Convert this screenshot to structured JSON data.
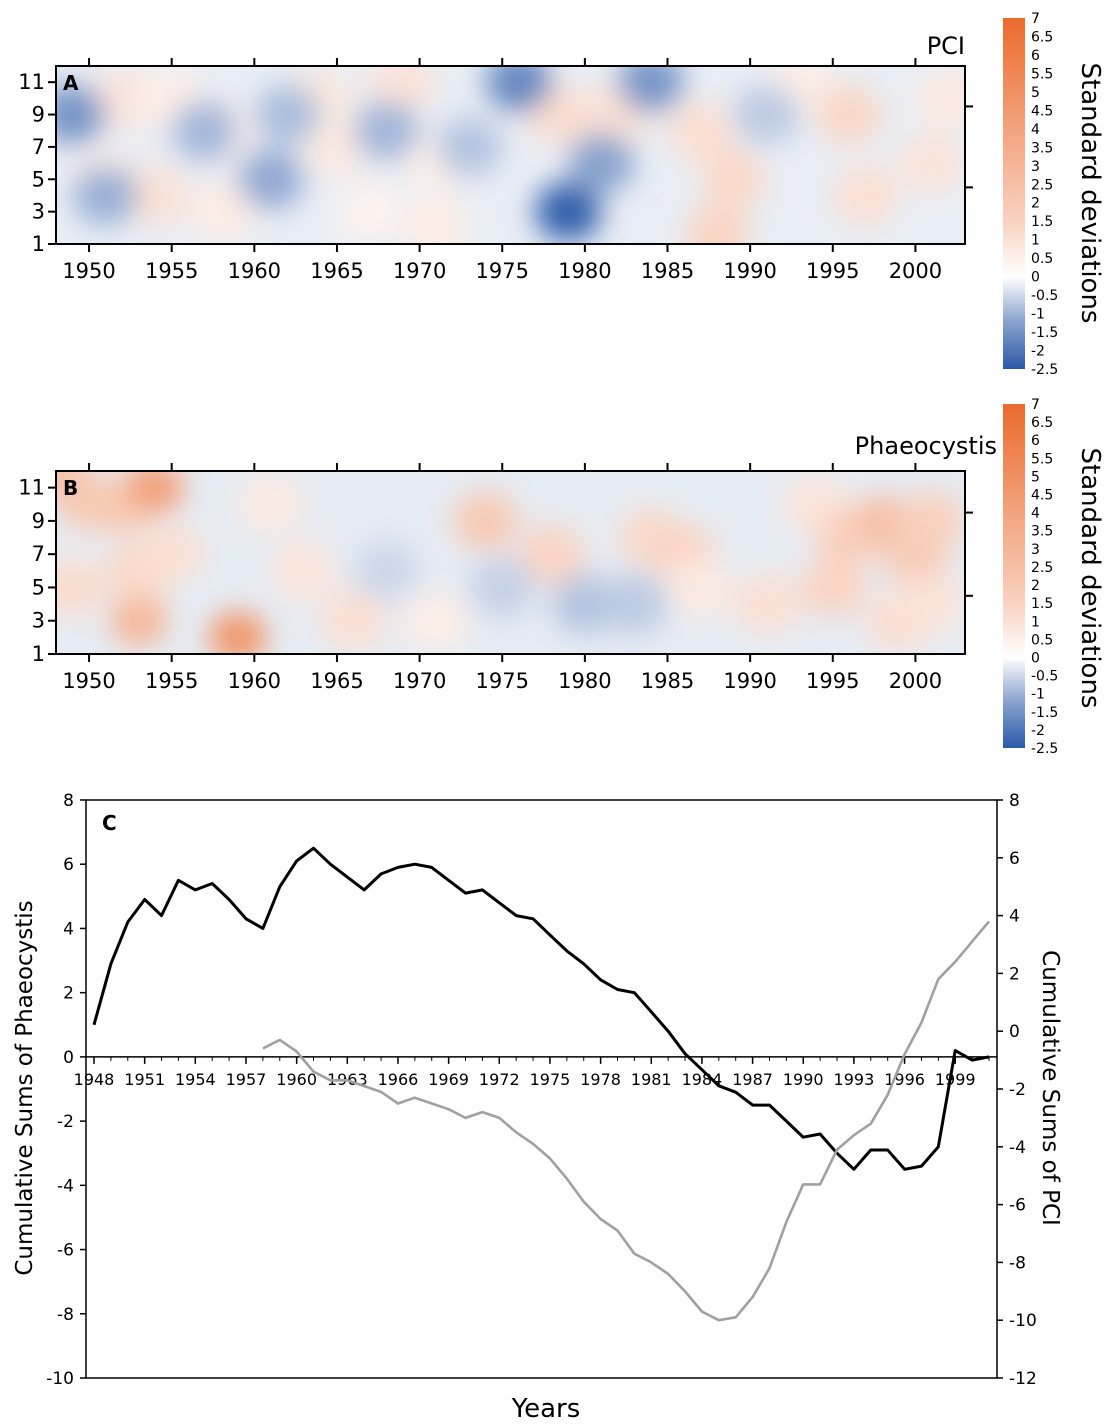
{
  "colors": {
    "negative": "#2b5aa8",
    "neutral": "#ffffff",
    "positive": "#ec6a2c",
    "phaeo_line": "#000000",
    "pci_line": "#a0a0a0"
  },
  "chart_data": [
    {
      "type": "heatmap",
      "panel_label": "A",
      "title": "PCI",
      "x_ticks": [
        "1950",
        "1955",
        "1960",
        "1965",
        "1970",
        "1975",
        "1980",
        "1985",
        "1990",
        "1995",
        "2000"
      ],
      "y_ticks": [
        "1",
        "3",
        "5",
        "7",
        "9",
        "11"
      ],
      "xlim": [
        1948,
        2003
      ],
      "ylim": [
        1,
        12
      ],
      "colorbar": {
        "label": "Standard deviations",
        "range": [
          -2.5,
          7
        ],
        "ticks": [
          "7",
          "6.5",
          "6",
          "5.5",
          "5",
          "4.5",
          "4",
          "3.5",
          "3",
          "2.5",
          "2",
          "1.5",
          "1",
          "0.5",
          "0",
          "-0.5",
          "-1",
          "-1.5",
          "-2",
          "-2.5"
        ]
      },
      "blobs": [
        {
          "year": 1952,
          "month": 10,
          "value": 1.2
        },
        {
          "year": 1955,
          "month": 10,
          "value": 0.8
        },
        {
          "year": 1951,
          "month": 5,
          "value": 0.9
        },
        {
          "year": 1954,
          "month": 4,
          "value": 1.4
        },
        {
          "year": 1958,
          "month": 8,
          "value": 0.7
        },
        {
          "year": 1958,
          "month": 3,
          "value": 0.9
        },
        {
          "year": 1964,
          "month": 10,
          "value": 1.1
        },
        {
          "year": 1965,
          "month": 7,
          "value": 1.0
        },
        {
          "year": 1967,
          "month": 3,
          "value": 0.6
        },
        {
          "year": 1969,
          "month": 11,
          "value": 1.3
        },
        {
          "year": 1971,
          "month": 6,
          "value": 0.7
        },
        {
          "year": 1971,
          "month": 2,
          "value": 0.9
        },
        {
          "year": 1978.5,
          "month": 9,
          "value": 1.6
        },
        {
          "year": 1982,
          "month": 9,
          "value": 1.4
        },
        {
          "year": 1987,
          "month": 8,
          "value": 1.5
        },
        {
          "year": 1989,
          "month": 5,
          "value": 1.8
        },
        {
          "year": 1988,
          "month": 1.5,
          "value": 2.0
        },
        {
          "year": 1993,
          "month": 11,
          "value": 0.8
        },
        {
          "year": 1996,
          "month": 9,
          "value": 1.9
        },
        {
          "year": 1997,
          "month": 4,
          "value": 1.5
        },
        {
          "year": 2001,
          "month": 6,
          "value": 1.3
        },
        {
          "year": 2002,
          "month": 10,
          "value": 1.0
        },
        {
          "year": 1949,
          "month": 9,
          "value": -1.6
        },
        {
          "year": 1951,
          "month": 4,
          "value": -1.2
        },
        {
          "year": 1957,
          "month": 8,
          "value": -1.1
        },
        {
          "year": 1961,
          "month": 5,
          "value": -1.3
        },
        {
          "year": 1962,
          "month": 9,
          "value": -1.0
        },
        {
          "year": 1968,
          "month": 8,
          "value": -1.1
        },
        {
          "year": 1973,
          "month": 7,
          "value": -0.9
        },
        {
          "year": 1976,
          "month": 11,
          "value": -1.8
        },
        {
          "year": 1979,
          "month": 3,
          "value": -2.4
        },
        {
          "year": 1981,
          "month": 6,
          "value": -1.4
        },
        {
          "year": 1984,
          "month": 11,
          "value": -1.6
        },
        {
          "year": 1991,
          "month": 9,
          "value": -0.8
        }
      ]
    },
    {
      "type": "heatmap",
      "panel_label": "B",
      "title": "Phaeocystis",
      "x_ticks": [
        "1950",
        "1955",
        "1960",
        "1965",
        "1970",
        "1975",
        "1980",
        "1985",
        "1990",
        "1995",
        "2000"
      ],
      "y_ticks": [
        "1",
        "3",
        "5",
        "7",
        "9",
        "11"
      ],
      "xlim": [
        1948,
        2003
      ],
      "ylim": [
        1,
        12
      ],
      "colorbar": {
        "label": "Standard deviations",
        "range": [
          -2.5,
          7
        ],
        "ticks": [
          "7",
          "6.5",
          "6",
          "5.5",
          "5",
          "4.5",
          "4",
          "3.5",
          "3",
          "2.5",
          "2",
          "1.5",
          "1",
          "0.5",
          "0",
          "-0.5",
          "-1",
          "-1.5",
          "-2",
          "-2.5"
        ]
      },
      "blobs": [
        {
          "year": 1948.5,
          "month": 11.5,
          "value": 3.0
        },
        {
          "year": 1950,
          "month": 10,
          "value": 2.6
        },
        {
          "year": 1952,
          "month": 10,
          "value": 2.5
        },
        {
          "year": 1954,
          "month": 11,
          "value": 4.5
        },
        {
          "year": 1953,
          "month": 3,
          "value": 3.5
        },
        {
          "year": 1959,
          "month": 2,
          "value": 5.0
        },
        {
          "year": 1949,
          "month": 5,
          "value": 1.6
        },
        {
          "year": 1953,
          "month": 6,
          "value": 1.8
        },
        {
          "year": 1955,
          "month": 7,
          "value": 1.5
        },
        {
          "year": 1961,
          "month": 10,
          "value": 1.0
        },
        {
          "year": 1963,
          "month": 6,
          "value": 1.2
        },
        {
          "year": 1966,
          "month": 3,
          "value": 1.5
        },
        {
          "year": 1974,
          "month": 9,
          "value": 2.5
        },
        {
          "year": 1978,
          "month": 7,
          "value": 2.0
        },
        {
          "year": 1984,
          "month": 8,
          "value": 1.8
        },
        {
          "year": 1986,
          "month": 7,
          "value": 2.0
        },
        {
          "year": 1987,
          "month": 5,
          "value": 1.0
        },
        {
          "year": 1991,
          "month": 4,
          "value": 1.5
        },
        {
          "year": 1994,
          "month": 10,
          "value": 1.2
        },
        {
          "year": 1995,
          "month": 5,
          "value": 2.0
        },
        {
          "year": 1996,
          "month": 8,
          "value": 2.2
        },
        {
          "year": 1998,
          "month": 9,
          "value": 3.0
        },
        {
          "year": 2000,
          "month": 7,
          "value": 2.5
        },
        {
          "year": 2001,
          "month": 9,
          "value": 2.2
        },
        {
          "year": 1999,
          "month": 3,
          "value": 1.6
        },
        {
          "year": 2001,
          "month": 4,
          "value": 1.3
        },
        {
          "year": 1971,
          "month": 3,
          "value": 0.8
        },
        {
          "year": 1980,
          "month": 4,
          "value": -0.9
        },
        {
          "year": 1983,
          "month": 4,
          "value": -0.8
        },
        {
          "year": 1975,
          "month": 5,
          "value": -0.7
        },
        {
          "year": 1968,
          "month": 6,
          "value": -0.6
        }
      ]
    },
    {
      "type": "line",
      "panel_label": "C",
      "xlabel": "Years",
      "ylabel": "Cumulative Sums of Phaeocystis",
      "y2label": "Cumulative Sums of PCI",
      "ylim": [
        -10,
        8
      ],
      "y2lim": [
        -12,
        8
      ],
      "y_ticks": [
        "8",
        "6",
        "4",
        "2",
        "0",
        "-2",
        "-4",
        "-6",
        "-8",
        "-10"
      ],
      "y2_ticks": [
        "8",
        "6",
        "4",
        "2",
        "0",
        "-2",
        "-4",
        "-6",
        "-8",
        "-10",
        "-12"
      ],
      "x_ticks": [
        "1948",
        "1951",
        "1954",
        "1957",
        "1960",
        "1963",
        "1966",
        "1969",
        "1972",
        "1975",
        "1978",
        "1981",
        "1984",
        "1987",
        "1990",
        "1993",
        "1996",
        "1999"
      ],
      "xlim": [
        1948,
        2001
      ],
      "series": [
        {
          "axis": "left",
          "x": [
            1948,
            1949,
            1950,
            1951,
            1952,
            1953,
            1954,
            1955,
            1956,
            1957,
            1958,
            1959,
            1960,
            1961,
            1962,
            1963,
            1964,
            1965,
            1966,
            1967,
            1968,
            1969,
            1970,
            1971,
            1972,
            1973,
            1974,
            1975,
            1976,
            1977,
            1978,
            1979,
            1980,
            1981,
            1982,
            1983,
            1984,
            1985,
            1986,
            1987,
            1988,
            1989,
            1990,
            1991,
            1992,
            1993,
            1994,
            1995,
            1996,
            1997,
            1998,
            1999,
            2000,
            2001
          ],
          "y": [
            1.0,
            2.9,
            4.2,
            4.9,
            4.4,
            5.5,
            5.2,
            5.4,
            4.9,
            4.3,
            4.0,
            5.3,
            6.1,
            6.5,
            6.0,
            5.6,
            5.2,
            5.7,
            5.9,
            6.0,
            5.9,
            5.5,
            5.1,
            5.2,
            4.8,
            4.4,
            4.3,
            3.8,
            3.3,
            2.9,
            2.4,
            2.1,
            2.0,
            1.4,
            0.8,
            0.1,
            -0.4,
            -0.9,
            -1.1,
            -1.5,
            -1.5,
            -2.0,
            -2.5,
            -2.4,
            -3.0,
            -3.5,
            -2.9,
            -2.9,
            -3.5,
            -3.4,
            -2.8,
            0.2,
            -0.1,
            0.0
          ]
        },
        {
          "axis": "right",
          "x": [
            1958,
            1959,
            1960,
            1961,
            1962,
            1963,
            1964,
            1965,
            1966,
            1967,
            1968,
            1969,
            1970,
            1971,
            1972,
            1973,
            1974,
            1975,
            1976,
            1977,
            1978,
            1979,
            1980,
            1981,
            1982,
            1983,
            1984,
            1985,
            1986,
            1987,
            1988,
            1989,
            1990,
            1991,
            1992,
            1993,
            1994,
            1995,
            1996,
            1997,
            1998,
            1999,
            2000,
            2001
          ],
          "y": [
            -0.6,
            -0.3,
            -0.7,
            -1.4,
            -1.7,
            -1.7,
            -1.9,
            -2.1,
            -2.5,
            -2.3,
            -2.5,
            -2.7,
            -3.0,
            -2.8,
            -3.0,
            -3.5,
            -3.9,
            -4.4,
            -5.1,
            -5.9,
            -6.5,
            -6.9,
            -7.7,
            -8.0,
            -8.4,
            -9.0,
            -9.7,
            -10.0,
            -9.9,
            -9.2,
            -8.2,
            -6.6,
            -5.3,
            -5.3,
            -4.1,
            -3.6,
            -3.2,
            -2.2,
            -0.8,
            0.3,
            1.8,
            2.4,
            3.1,
            3.8
          ]
        }
      ]
    }
  ]
}
